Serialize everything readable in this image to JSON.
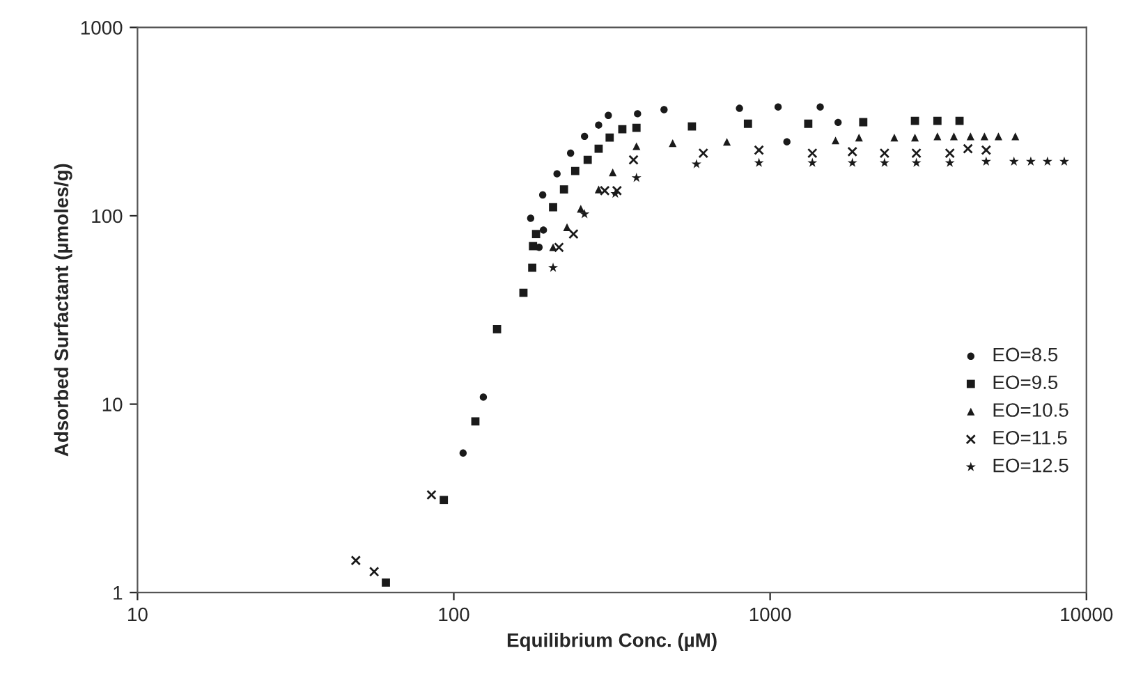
{
  "chart_data": {
    "type": "scatter",
    "xlabel": "Equilibrium Conc. (µM)",
    "ylabel": "Adsorbed Surfactant (µmoles/g)",
    "log": "xy",
    "xlim": [
      10,
      10000
    ],
    "ylim": [
      1,
      1000
    ],
    "xticks": [
      10,
      100,
      1000,
      10000
    ],
    "yticks": [
      1,
      10,
      100,
      1000
    ],
    "grid": false,
    "legend": "right",
    "series": [
      {
        "name": "EO=8.5",
        "color": "#1a1a1a",
        "marker": "circle",
        "x": [
          107,
          124,
          186,
          192,
          175,
          191,
          212,
          234,
          259,
          287,
          308,
          381,
          462,
          800,
          1060,
          1440,
          1130,
          1640
        ],
        "values": [
          5.5,
          10.9,
          68,
          84,
          97,
          129,
          167,
          215,
          264,
          303,
          341,
          348,
          366,
          372,
          378,
          378,
          247,
          313
        ]
      },
      {
        "name": "EO=9.5",
        "color": "#1a1a1a",
        "marker": "square",
        "x": [
          61,
          93,
          117,
          137,
          166,
          177,
          178,
          182,
          206,
          223,
          242,
          265,
          287,
          311,
          341,
          378,
          566,
          851,
          1320,
          1970,
          2870,
          3380,
          3970
        ],
        "values": [
          1.13,
          3.1,
          8.1,
          25,
          39,
          53,
          69,
          80,
          111,
          138,
          173,
          198,
          227,
          260,
          288,
          293,
          298,
          308,
          308,
          314,
          319,
          319,
          319
        ]
      },
      {
        "name": "EO=10.5",
        "color": "#1a1a1a",
        "marker": "triangle",
        "x": [
          206,
          228,
          252,
          287,
          318,
          378,
          492,
          730,
          1610,
          1910,
          2470,
          2870,
          3380,
          3810,
          4300,
          4760,
          5270,
          5960
        ],
        "values": [
          68,
          87,
          109,
          138,
          170,
          234,
          243,
          247,
          251,
          260,
          260,
          260,
          264,
          264,
          264,
          264,
          264,
          264
        ]
      },
      {
        "name": "EO=11.5",
        "color": "#1a1a1a",
        "marker": "cross",
        "x": [
          49,
          56,
          85,
          215,
          239,
          300,
          328,
          370,
          615,
          922,
          1360,
          1820,
          2300,
          2900,
          3700,
          4220,
          4820
        ],
        "values": [
          1.48,
          1.29,
          3.3,
          68,
          80,
          136,
          136,
          198,
          215,
          223,
          215,
          219,
          215,
          215,
          215,
          227,
          223
        ]
      },
      {
        "name": "EO=12.5",
        "color": "#1a1a1a",
        "marker": "star",
        "x": [
          206,
          259,
          324,
          378,
          585,
          922,
          1360,
          1820,
          2300,
          2900,
          3700,
          4820,
          5900,
          6670,
          7530,
          8510
        ],
        "values": [
          53,
          102,
          131,
          159,
          188,
          191,
          191,
          191,
          191,
          191,
          191,
          194,
          194,
          194,
          194,
          194
        ]
      }
    ]
  }
}
